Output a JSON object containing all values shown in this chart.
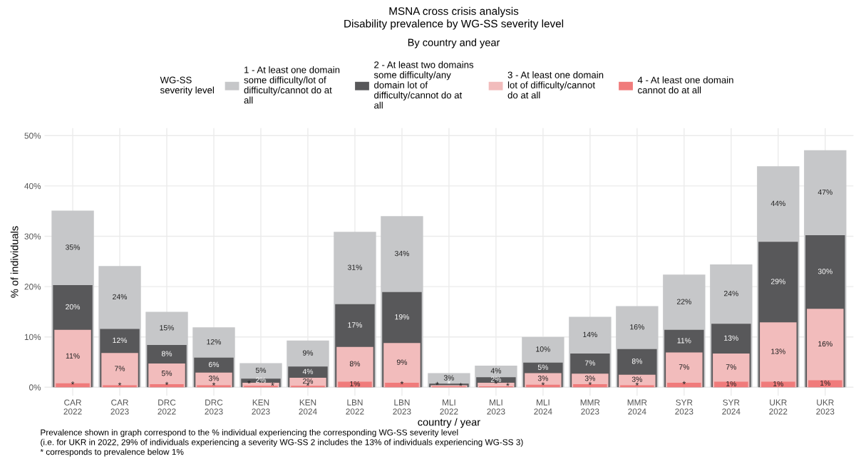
{
  "chart_data": {
    "type": "bar",
    "title": "MSNA cross crisis analysis\nDisability prevalence by WG-SS severity level",
    "subtitle": "By country and year",
    "xlabel": "country / year",
    "ylabel": "% of individuals",
    "legend_title": "WG-SS\nseverity level",
    "legend": "top",
    "grid": true,
    "categories": [
      "CAR\n2022",
      "CAR\n2023",
      "DRC\n2022",
      "DRC\n2023",
      "KEN\n2023",
      "KEN\n2024",
      "LBN\n2022",
      "LBN\n2023",
      "MLI\n2022",
      "MLI\n2023",
      "MLI\n2024",
      "MMR\n2023",
      "MMR\n2024",
      "SYR\n2023",
      "SYR\n2024",
      "UKR\n2022",
      "UKR\n2023"
    ],
    "ylim": [
      -1.7,
      51.5
    ],
    "yticks": [
      {
        "value": 0,
        "label": "0%"
      },
      {
        "value": 10,
        "label": "10%"
      },
      {
        "value": 20,
        "label": "20%"
      },
      {
        "value": 30,
        "label": "30%"
      },
      {
        "value": 40,
        "label": "40%"
      },
      {
        "value": 50,
        "label": "50%"
      }
    ],
    "series": [
      {
        "name": "1 - At least one domain\nsome difficulty/lot of\ndifficulty/cannot do at\nall",
        "color": "#c6c7c9",
        "values": [
          35.1,
          24.1,
          15.0,
          11.9,
          4.8,
          9.3,
          30.9,
          34.0,
          2.8,
          4.3,
          10.0,
          14.0,
          16.1,
          22.4,
          24.4,
          43.9,
          47.1
        ],
        "value_labels": [
          "35%",
          "24%",
          "15%",
          "12%",
          "5%",
          "9%",
          "31%",
          "34%",
          "3%",
          "4%",
          "10%",
          "14%",
          "16%",
          "22%",
          "24%",
          "44%",
          "47%"
        ]
      },
      {
        "name": "2 - At least two domains\nsome difficulty/any\ndomain lot of\ndifficulty/cannot do at\nall",
        "color": "#58585a",
        "values": [
          20.3,
          11.6,
          8.4,
          5.9,
          1.7,
          4.1,
          16.5,
          18.9,
          0.7,
          2.0,
          4.9,
          6.7,
          7.6,
          11.4,
          12.6,
          28.9,
          30.2
        ],
        "value_labels": [
          "20%",
          "12%",
          "8%",
          "6%",
          "2%",
          "4%",
          "17%",
          "19%",
          "*",
          "2%",
          "5%",
          "7%",
          "8%",
          "11%",
          "13%",
          "29%",
          "30%"
        ]
      },
      {
        "name": "3 - At least one domain\nlot of difficulty/cannot\ndo at all",
        "color": "#f2bcbc",
        "values": [
          11.4,
          6.8,
          4.7,
          2.9,
          0.9,
          1.9,
          8.0,
          8.8,
          0.4,
          0.9,
          2.8,
          2.7,
          2.5,
          6.9,
          6.7,
          12.9,
          15.6
        ],
        "value_labels": [
          "11%",
          "7%",
          "5%",
          "3%",
          "*",
          "2%",
          "8%",
          "9%",
          "*",
          "*",
          "3%",
          "3%",
          "3%",
          "7%",
          "7%",
          "13%",
          "16%"
        ]
      },
      {
        "name": "4 - At least one domain\ncannot do at all",
        "color": "#f07b7b",
        "values": [
          0.8,
          0.4,
          0.6,
          0.4,
          0.3,
          0.3,
          1.1,
          0.9,
          0.2,
          0.2,
          0.5,
          0.6,
          0.4,
          0.9,
          1.1,
          1.1,
          1.4
        ],
        "value_labels": [
          "*",
          "*",
          "*",
          "*",
          "*",
          "*",
          "1%",
          "*",
          "*",
          "*",
          "*",
          "*",
          "*",
          "*",
          "1%",
          "1%",
          "1%"
        ]
      }
    ],
    "annotations": [
      "Prevalence shown in graph correspond to the % individual experiencing the corresponding WG-SS severity level",
      "(i.e. for UKR in 2022, 29% of individuals experiencing a severity WG-SS 2 includes the 13% of individuals experiencing WG-SS 3)",
      "* corresponds to prevalence below 1%"
    ]
  }
}
